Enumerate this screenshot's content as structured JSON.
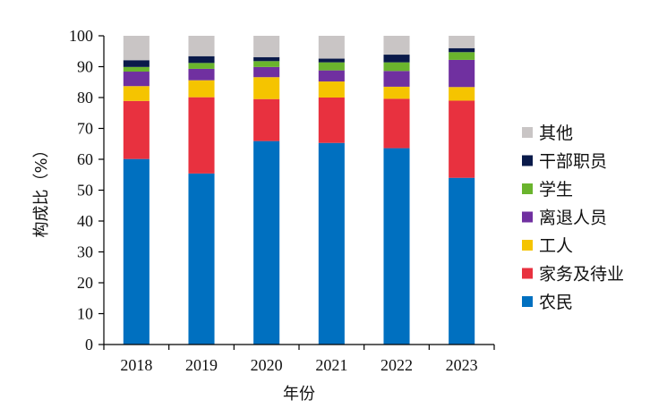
{
  "chart_data": {
    "type": "bar",
    "stacked": true,
    "categories": [
      "2018",
      "2019",
      "2020",
      "2021",
      "2022",
      "2023"
    ],
    "xlabel": "年份",
    "ylabel": "构成比（%）",
    "ylim": [
      0,
      100
    ],
    "yticks": [
      0,
      10,
      20,
      30,
      40,
      50,
      60,
      70,
      80,
      90,
      100
    ],
    "grid": false,
    "legend_position": "right",
    "series": [
      {
        "name": "农民",
        "color": "#0070C0",
        "values": [
          60.1,
          55.4,
          65.9,
          65.3,
          63.6,
          54.0
        ]
      },
      {
        "name": "家务及待业",
        "color": "#E8313F",
        "values": [
          18.8,
          24.7,
          13.6,
          14.7,
          16.0,
          25.0
        ]
      },
      {
        "name": "工人",
        "color": "#F5C400",
        "values": [
          4.8,
          5.5,
          7.1,
          5.2,
          3.9,
          4.4
        ]
      },
      {
        "name": "离退人员",
        "color": "#7030A0",
        "values": [
          4.7,
          3.7,
          3.3,
          3.6,
          5.1,
          8.8
        ]
      },
      {
        "name": "学生",
        "color": "#6AB42D",
        "values": [
          1.5,
          1.9,
          1.9,
          2.6,
          2.8,
          2.5
        ]
      },
      {
        "name": "干部职员",
        "color": "#0A1A4A",
        "values": [
          2.2,
          2.2,
          1.3,
          1.2,
          2.5,
          1.3
        ]
      },
      {
        "name": "其他",
        "color": "#C9C5C5",
        "values": [
          7.9,
          6.6,
          6.9,
          7.4,
          6.1,
          4.0
        ]
      }
    ]
  }
}
